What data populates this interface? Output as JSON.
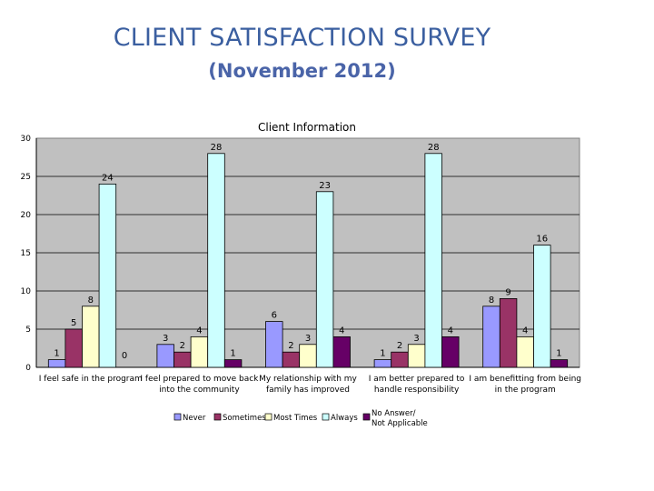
{
  "page": {
    "title": "CLIENT SATISFACTION SURVEY",
    "subtitle": "(November 2012)"
  },
  "colors": {
    "plot_bg": "#c0c0c0",
    "never": "#9999ff",
    "sometimes": "#993366",
    "most_times": "#ffffcc",
    "always": "#ccffff",
    "no_answer": "#660066"
  },
  "chart_data": {
    "type": "bar",
    "title": "Client Information",
    "xlabel": "",
    "ylabel": "",
    "ylim": [
      0,
      30
    ],
    "yticks": [
      0,
      5,
      10,
      15,
      20,
      25,
      30
    ],
    "grid": true,
    "legend": "bottom",
    "categories": [
      [
        "I feel safe in the program"
      ],
      [
        "I feel prepared to move back",
        "into the community"
      ],
      [
        "My relationship with my",
        "family has improved"
      ],
      [
        "I am better prepared to",
        "handle responsibility"
      ],
      [
        "I am benefitting from being",
        "in the program"
      ]
    ],
    "series": [
      {
        "name": "Never",
        "color_key": "never",
        "values": [
          1,
          3,
          6,
          1,
          8
        ]
      },
      {
        "name": "Sometimes",
        "color_key": "sometimes",
        "values": [
          5,
          2,
          2,
          2,
          9
        ]
      },
      {
        "name": "Most Times",
        "color_key": "most_times",
        "values": [
          8,
          4,
          3,
          3,
          4
        ]
      },
      {
        "name": "Always",
        "color_key": "always",
        "values": [
          24,
          28,
          23,
          28,
          16
        ]
      },
      {
        "name": "No Answer/ Not Applicable",
        "legend_lines": [
          "No Answer/",
          "Not Applicable"
        ],
        "color_key": "no_answer",
        "values": [
          0,
          1,
          4,
          4,
          1
        ]
      }
    ]
  }
}
